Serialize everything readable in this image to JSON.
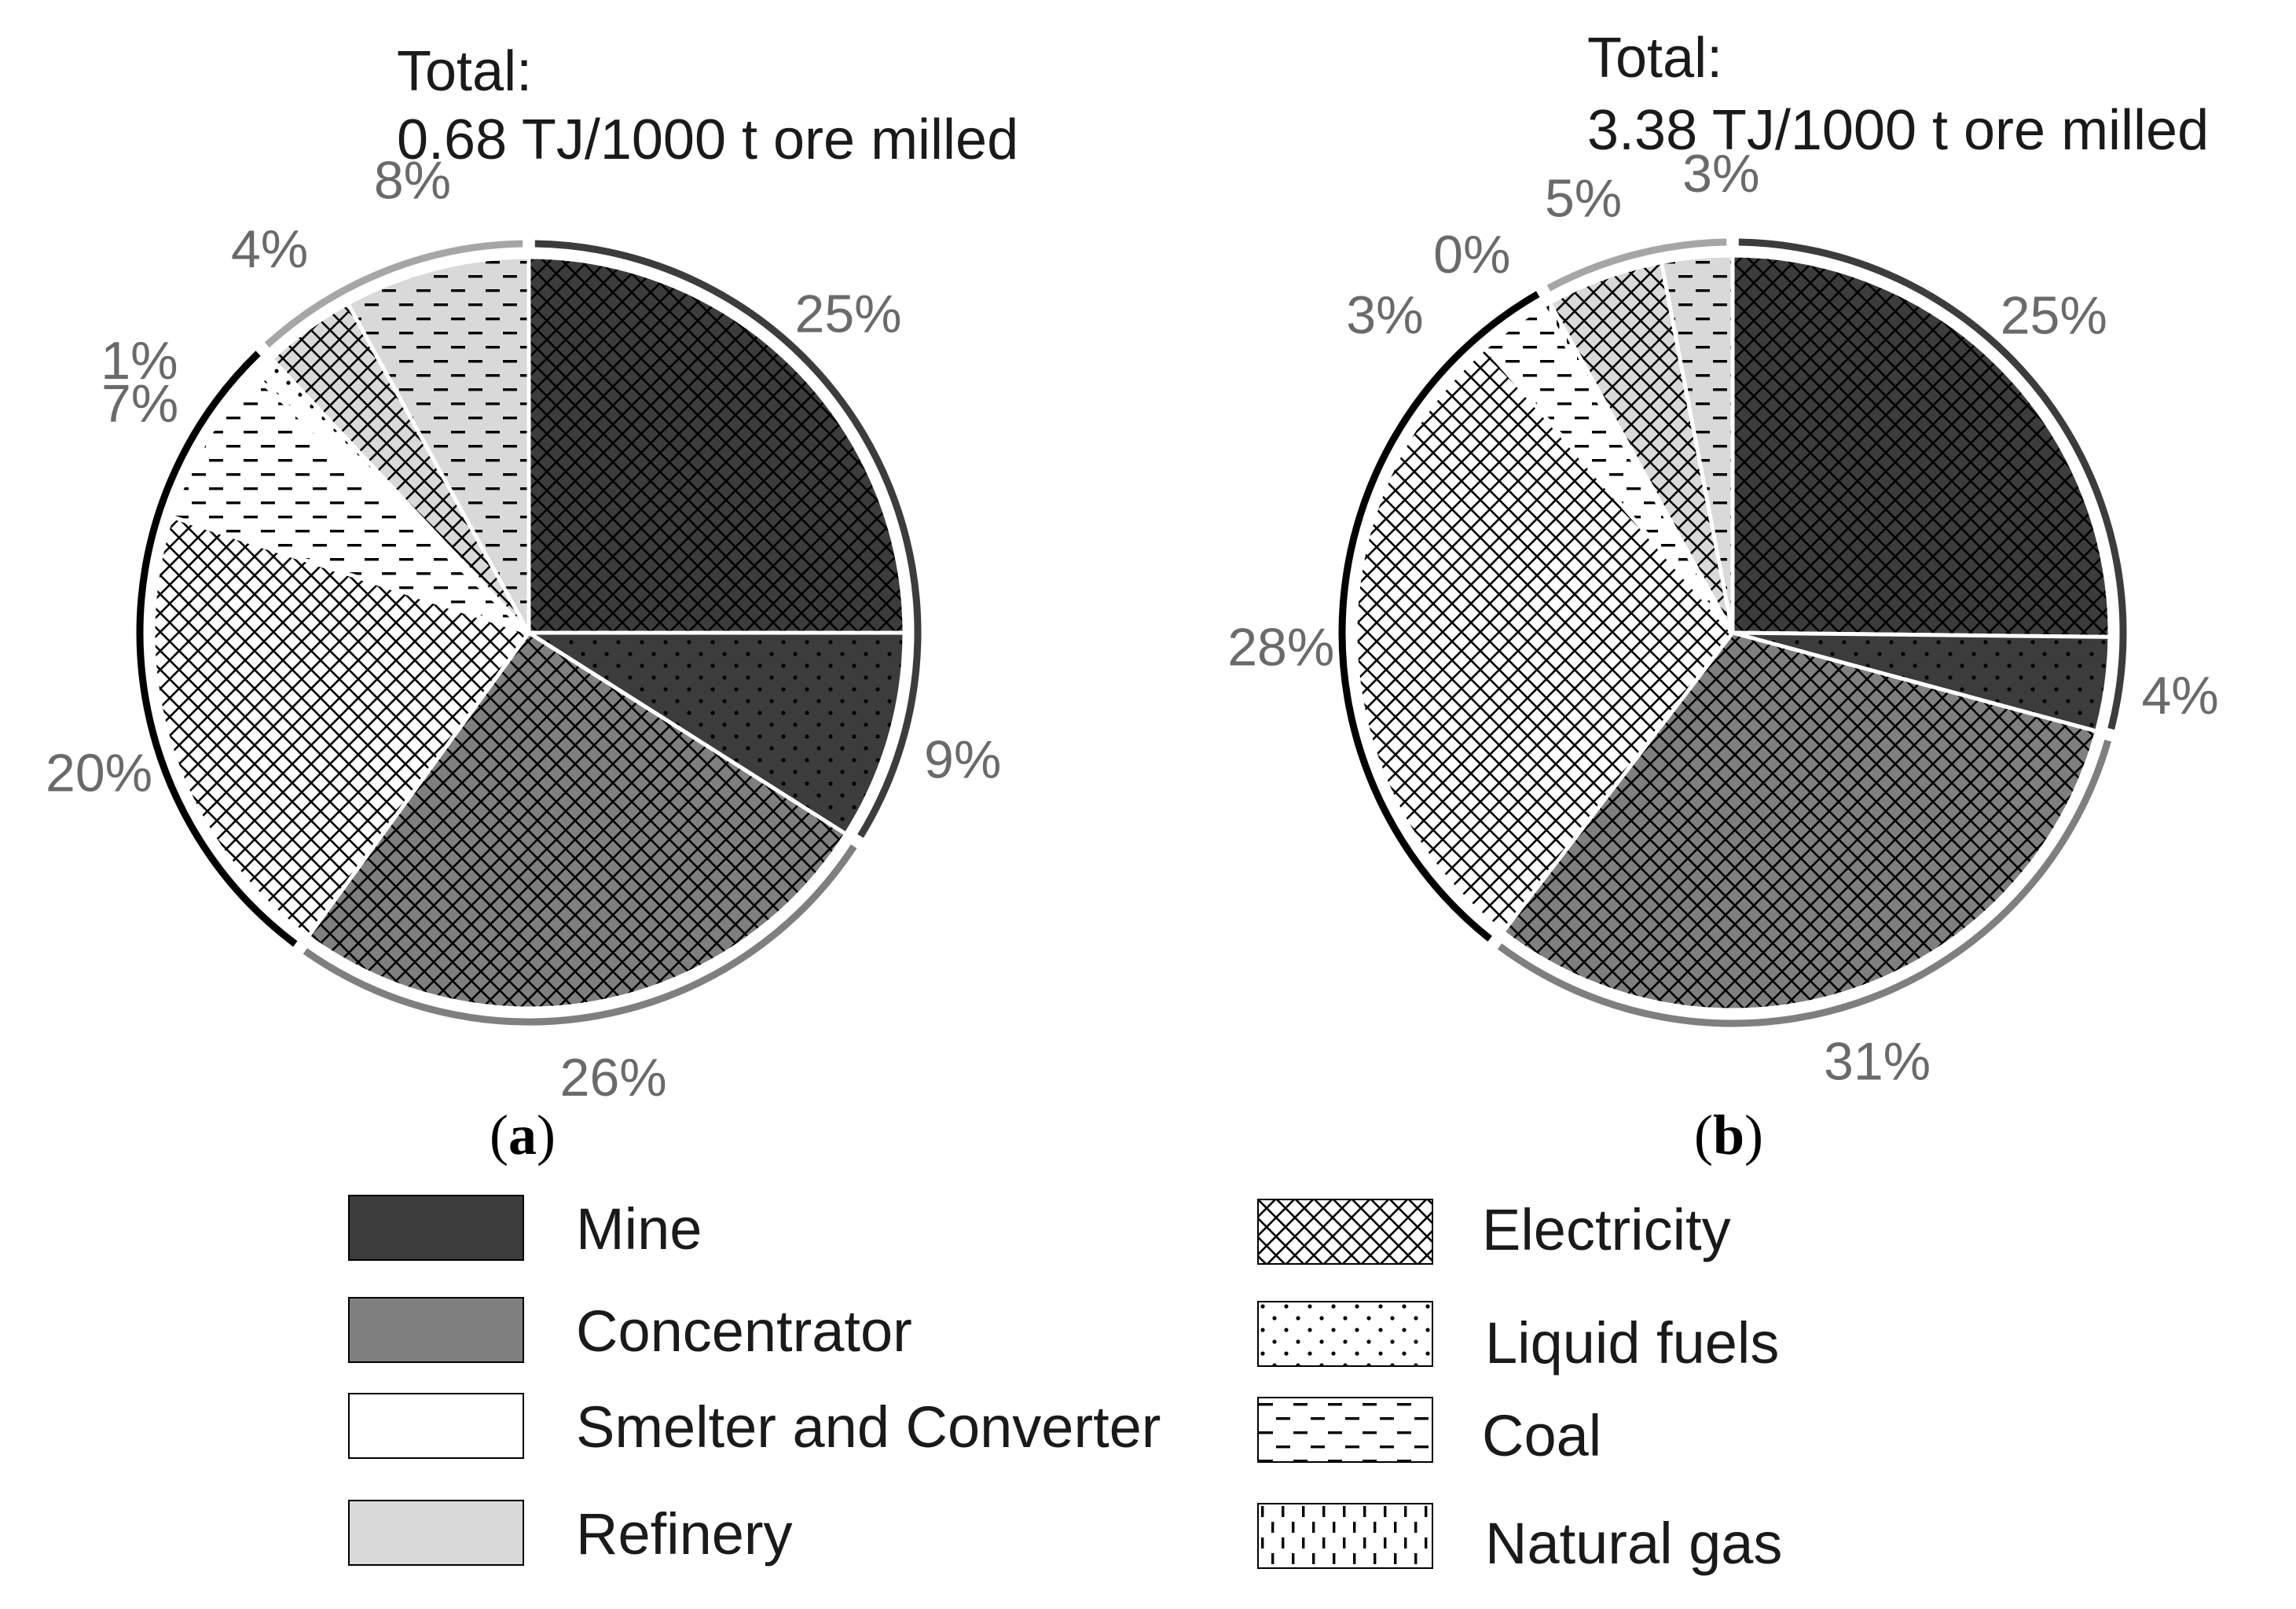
{
  "colors": {
    "mine": "#3c3c3c",
    "concentrator": "#7f7f7f",
    "smelter": "#ffffff",
    "refinery": "#d9d9d9",
    "label_gray": "#6a6a6a",
    "ring_smelter": "#000000",
    "ring_refinery": "#a6a6a6"
  },
  "legend": {
    "stages": [
      {
        "key": "mine",
        "label": "Mine",
        "icon": "solid-dark-swatch"
      },
      {
        "key": "concentrator",
        "label": "Concentrator",
        "icon": "solid-gray-swatch"
      },
      {
        "key": "smelter",
        "label": "Smelter and Converter",
        "icon": "solid-white-swatch"
      },
      {
        "key": "refinery",
        "label": "Refinery",
        "icon": "solid-light-swatch"
      }
    ],
    "sources": [
      {
        "key": "electricity",
        "label": "Electricity",
        "icon": "crosshatch-pattern"
      },
      {
        "key": "liquid",
        "label": "Liquid fuels",
        "icon": "dots-pattern"
      },
      {
        "key": "coal",
        "label": "Coal",
        "icon": "dashes-pattern"
      },
      {
        "key": "gas",
        "label": "Natural gas",
        "icon": "vertical-dashes-pattern"
      }
    ]
  },
  "chart_data": [
    {
      "type": "pie",
      "panel_label": "a",
      "title_line1": "Total:",
      "title_line2": "0.68 TJ/1000 t ore milled",
      "slices": [
        {
          "stage": "mine",
          "source": "electricity",
          "value": 25,
          "label": "25%"
        },
        {
          "stage": "mine",
          "source": "liquid",
          "value": 9,
          "label": "9%"
        },
        {
          "stage": "concentrator",
          "source": "electricity",
          "value": 26,
          "label": "26%"
        },
        {
          "stage": "smelter",
          "source": "electricity",
          "value": 20,
          "label": "20%"
        },
        {
          "stage": "smelter",
          "source": "coal",
          "value": 7,
          "label": "7%"
        },
        {
          "stage": "smelter",
          "source": "liquid",
          "value": 1,
          "label": "1%"
        },
        {
          "stage": "refinery",
          "source": "electricity",
          "value": 4,
          "label": "4%"
        },
        {
          "stage": "refinery",
          "source": "coal",
          "value": 8,
          "label": "8%"
        }
      ]
    },
    {
      "type": "pie",
      "panel_label": "b",
      "title_line1": "Total:",
      "title_line2": "3.38 TJ/1000 t ore milled",
      "slices": [
        {
          "stage": "mine",
          "source": "electricity",
          "value": 25,
          "label": "25%"
        },
        {
          "stage": "mine",
          "source": "liquid",
          "value": 4,
          "label": "4%"
        },
        {
          "stage": "concentrator",
          "source": "electricity",
          "value": 31,
          "label": "31%"
        },
        {
          "stage": "smelter",
          "source": "electricity",
          "value": 28,
          "label": "28%"
        },
        {
          "stage": "smelter",
          "source": "coal",
          "value": 3,
          "label": "3%"
        },
        {
          "stage": "smelter",
          "source": "gas",
          "value": 0.3,
          "label": "0%"
        },
        {
          "stage": "refinery",
          "source": "electricity",
          "value": 5,
          "label": "5%"
        },
        {
          "stage": "refinery",
          "source": "coal",
          "value": 3,
          "label": "3%"
        }
      ]
    }
  ]
}
